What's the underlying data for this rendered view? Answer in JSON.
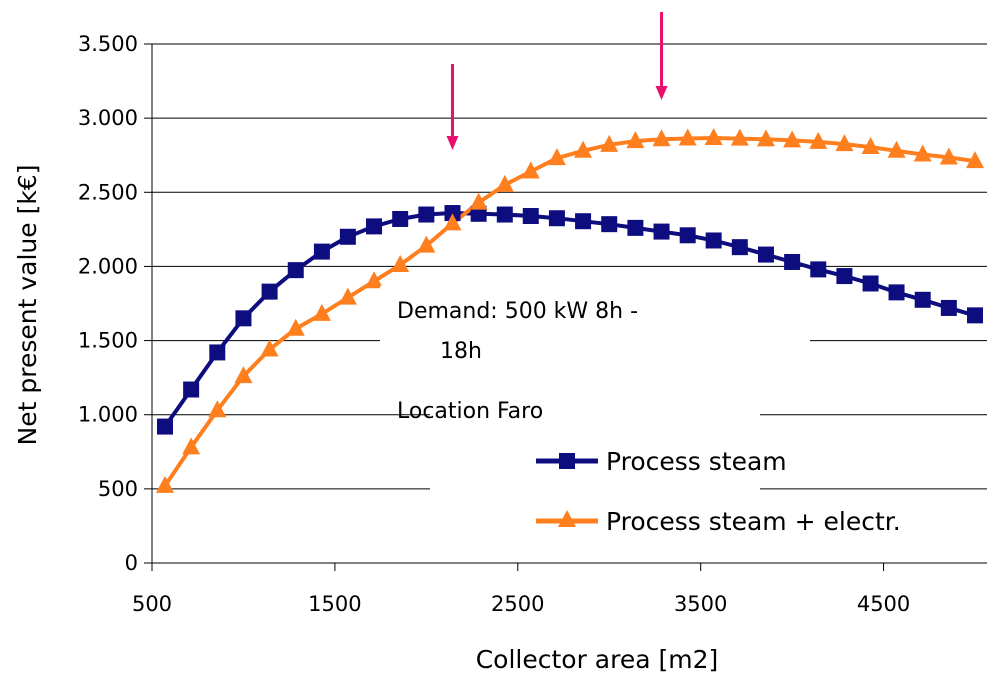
{
  "chart_data": {
    "type": "line",
    "title": "",
    "xlabel": "Collector area [m2]",
    "ylabel": "Net present value [k€]",
    "xlim": [
      500,
      5000
    ],
    "ylim": [
      0,
      3500
    ],
    "xticks": [
      500,
      1500,
      2500,
      3500,
      4500
    ],
    "xtick_labels": [
      "500",
      "1500",
      "2500",
      "3500",
      "4500"
    ],
    "yticks": [
      0,
      500,
      1000,
      1500,
      2000,
      2500,
      3000,
      3500
    ],
    "ytick_labels": [
      "0",
      "500",
      "1.000",
      "1.500",
      "2.000",
      "2.500",
      "3.000",
      "3.500"
    ],
    "grid": "horizontal",
    "legend_position": "lower-right",
    "series": [
      {
        "name": "Process steam",
        "color": "#0d0d80",
        "marker": "square",
        "x": [
          571,
          714,
          857,
          1000,
          1143,
          1286,
          1429,
          1571,
          1714,
          1857,
          2000,
          2143,
          2286,
          2429,
          2571,
          2714,
          2857,
          3000,
          3143,
          3286,
          3429,
          3571,
          3714,
          3857,
          4000,
          4143,
          4286,
          4429,
          4571,
          4714,
          4857,
          5000
        ],
        "values": [
          920,
          1170,
          1420,
          1650,
          1830,
          1975,
          2100,
          2200,
          2270,
          2320,
          2350,
          2360,
          2355,
          2350,
          2340,
          2325,
          2305,
          2285,
          2260,
          2235,
          2210,
          2175,
          2130,
          2080,
          2030,
          1980,
          1935,
          1885,
          1825,
          1775,
          1720,
          1670
        ]
      },
      {
        "name": "Process steam + electr.",
        "color": "#ff7f1f",
        "marker": "triangle",
        "x": [
          571,
          714,
          857,
          1000,
          1143,
          1286,
          1429,
          1571,
          1714,
          1857,
          2000,
          2143,
          2286,
          2429,
          2571,
          2714,
          2857,
          3000,
          3143,
          3286,
          3429,
          3571,
          3714,
          3857,
          4000,
          4143,
          4286,
          4429,
          4571,
          4714,
          4857,
          5000
        ],
        "values": [
          520,
          780,
          1030,
          1260,
          1440,
          1580,
          1680,
          1790,
          1900,
          2010,
          2140,
          2290,
          2430,
          2550,
          2640,
          2730,
          2780,
          2820,
          2845,
          2858,
          2863,
          2866,
          2862,
          2857,
          2850,
          2840,
          2825,
          2805,
          2780,
          2755,
          2735,
          2710
        ]
      }
    ],
    "annotations": [
      {
        "text": "Demand: 500 kW 8h -"
      },
      {
        "text": "18h"
      },
      {
        "text": "Location Faro"
      }
    ],
    "arrows": [
      {
        "x": 2143,
        "color": "#e8106a"
      },
      {
        "x": 3286,
        "color": "#e8106a"
      }
    ]
  }
}
